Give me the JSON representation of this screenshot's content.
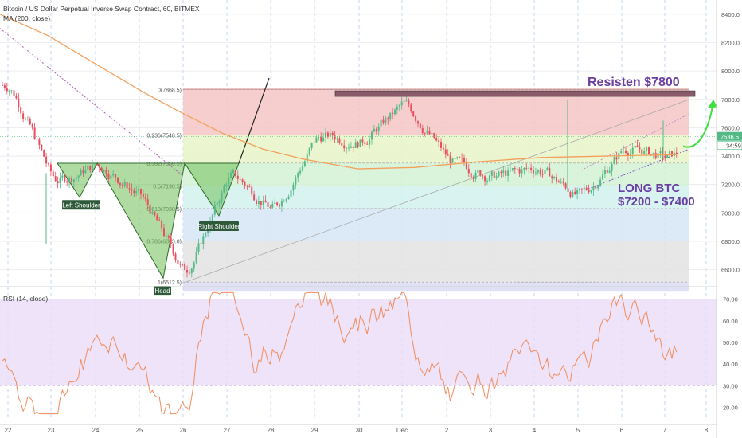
{
  "header": {
    "title": "Bitcoin / US Dollar Perpetual Inverse Swap Contract, 60, BITMEX",
    "ma_label": "MA (200, close)",
    "rsi_label": "RSI (14, close)"
  },
  "price_axis": {
    "ticks": [
      "8400.0",
      "8200.0",
      "8000.0",
      "7800.0",
      "7600.0",
      "7400.0",
      "7200.0",
      "7000.0",
      "6800.0",
      "6600.0"
    ],
    "last_price": "7536.5",
    "countdown": "34:59"
  },
  "rsi_axis": {
    "ticks": [
      "70.00",
      "60.00",
      "50.00",
      "40.00",
      "30.00",
      "20.00"
    ]
  },
  "time_axis": {
    "ticks": [
      "22",
      "23",
      "24",
      "25",
      "26",
      "27",
      "28",
      "29",
      "30",
      "Dec",
      "2",
      "3",
      "4",
      "5",
      "6",
      "7",
      "8"
    ]
  },
  "fib_levels": [
    {
      "label": "0(7868.5)",
      "price": 7868.5,
      "fill": "#f4c5c5"
    },
    {
      "label": "0.236(7548.5)",
      "price": 7548.5,
      "fill": "#e8f5c8"
    },
    {
      "label": "0.382(7350.5)",
      "price": 7350.5,
      "fill": "#d2f2d4"
    },
    {
      "label": "0.5(7190.5)",
      "price": 7190.5,
      "fill": "#d2f1ee"
    },
    {
      "label": "0.618(7030.5)",
      "price": 7030.5,
      "fill": "#d6e6f6"
    },
    {
      "label": "0.786(6803.0)",
      "price": 6803.0,
      "fill": "#e3e3e3"
    },
    {
      "label": "1(6512.5)",
      "price": 6512.5,
      "fill": "#dcdcf5"
    }
  ],
  "annotations": {
    "left_shoulder": "Left Shoulder",
    "head": "Head",
    "right_shoulder": "Right Shoulder",
    "resistance": "Resisten $7800",
    "long_line1": "LONG BTC",
    "long_line2": "$7200 - $7400"
  },
  "colors": {
    "up": "#53b987",
    "down": "#eb4d5c",
    "ma": "#f3a05b",
    "rsi": "#f08c5c",
    "annotation_text": "#6a3fa0",
    "resistance_band": "#8b5a6a",
    "pattern_fill": "#6fbf5a",
    "arrow": "#3ee03e",
    "price_tag": "#53b987"
  },
  "chart_data": {
    "type": "candlestick",
    "timeframe": "60",
    "ylim": [
      6480,
      8500
    ],
    "rsi_ylim": [
      15,
      75
    ],
    "ma_period": 200,
    "key_points": [
      {
        "x": "22",
        "price": 7900
      },
      {
        "x": "22",
        "price": 7200
      },
      {
        "x": "23",
        "price": 7350
      },
      {
        "x": "24",
        "price": 7100
      },
      {
        "x": "25",
        "price": 6550
      },
      {
        "x": "26",
        "price": 7300
      },
      {
        "x": "27",
        "price": 7000
      },
      {
        "x": "28",
        "price": 7550
      },
      {
        "x": "29",
        "price": 7500
      },
      {
        "x": "30",
        "price": 7780
      },
      {
        "x": "Dec",
        "price": 7350
      },
      {
        "x": "2",
        "price": 7250
      },
      {
        "x": "3",
        "price": 7320
      },
      {
        "x": "4",
        "price": 7100
      },
      {
        "x": "5",
        "price": 7470
      },
      {
        "x": "6",
        "price": 7380
      },
      {
        "x": "7",
        "price": 7536.5
      }
    ]
  }
}
